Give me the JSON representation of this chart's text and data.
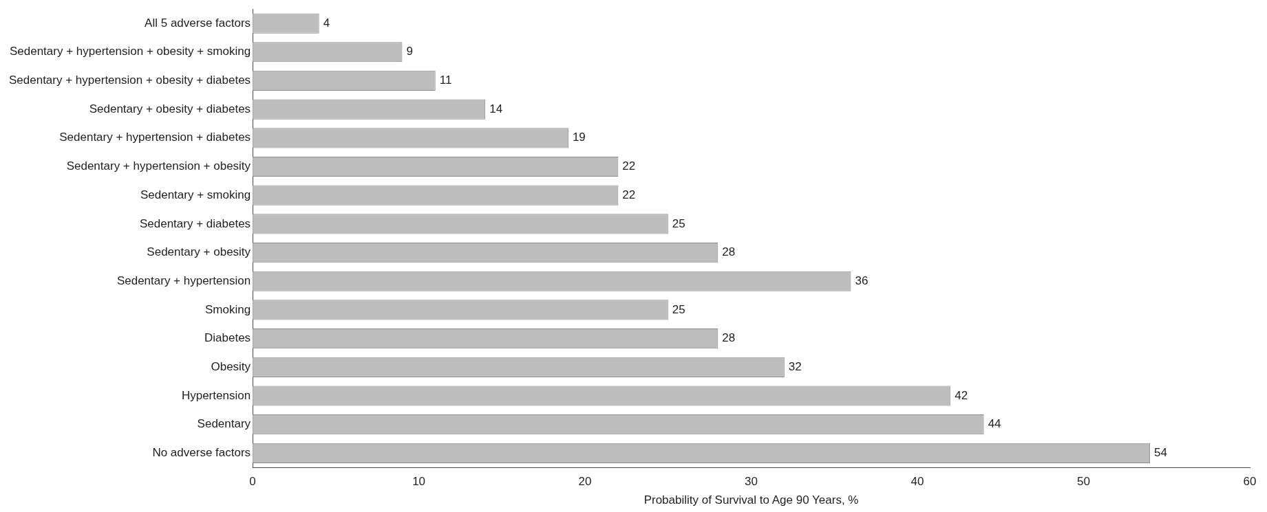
{
  "chart_data": {
    "type": "bar",
    "orientation": "horizontal",
    "xlabel": "Probability of Survival to Age 90 Years, %",
    "categories": [
      "All 5 adverse factors",
      "Sedentary + hypertension + obesity + smoking",
      "Sedentary + hypertension + obesity + diabetes",
      "Sedentary + obesity + diabetes",
      "Sedentary + hypertension + diabetes",
      "Sedentary + hypertension + obesity",
      "Sedentary + smoking",
      "Sedentary + diabetes",
      "Sedentary + obesity",
      "Sedentary + hypertension",
      "Smoking",
      "Diabetes",
      "Obesity",
      "Hypertension",
      "Sedentary",
      "No adverse factors"
    ],
    "values": [
      4,
      9,
      11,
      14,
      19,
      22,
      22,
      25,
      28,
      36,
      25,
      28,
      32,
      42,
      44,
      54
    ],
    "color": "#bdbdbd",
    "xlim": [
      0,
      60
    ],
    "xticks": [
      0,
      10,
      20,
      30,
      40,
      50,
      60
    ],
    "data_labels": true,
    "grid": false,
    "legend": false
  }
}
